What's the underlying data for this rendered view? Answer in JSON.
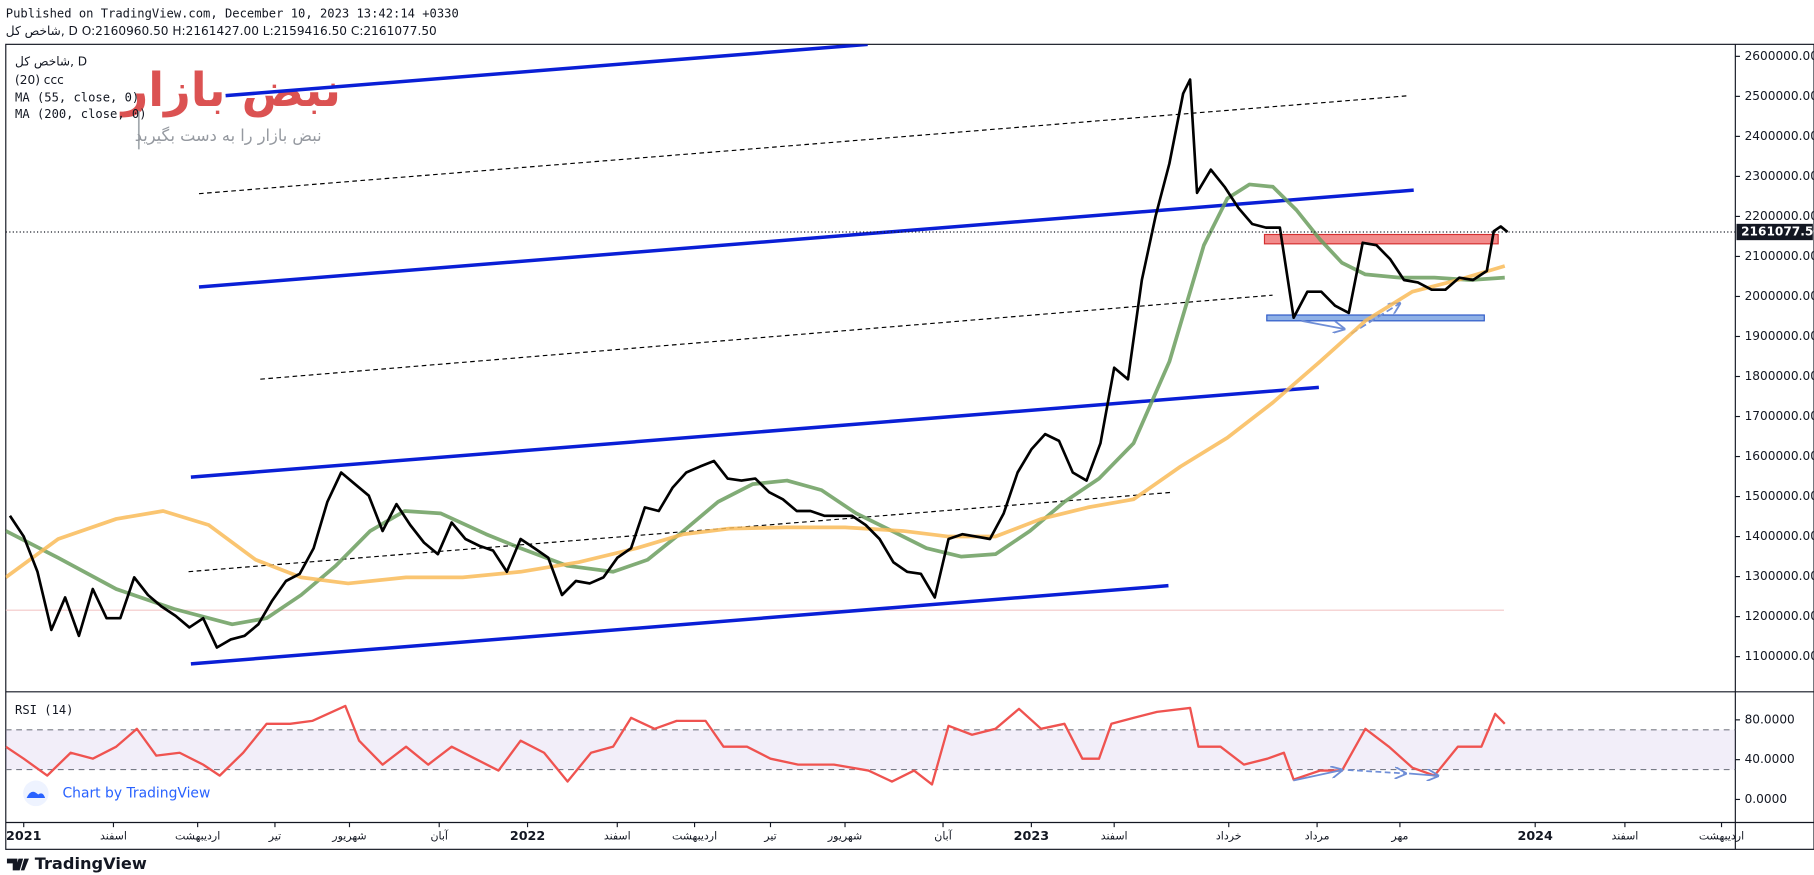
{
  "header": {
    "published": "Published on TradingView.com, December 10, 2023 13:42:14 +0330",
    "symbol_line": "شاخص کل, D O:2160960.50 H:2161427.00 L:2159416.50 C:2161077.50"
  },
  "watermark": {
    "brand": "نبض بازار",
    "tagline": "نبض بازار را به دست بگیرید"
  },
  "chart_data": [
    {
      "type": "line",
      "legend_extra": "(20) ccc",
      "xlim": [
        -13,
        1240
      ],
      "xticks": [
        {
          "value": 0,
          "label": "2021"
        },
        {
          "value": 65,
          "label": "اسفند"
        },
        {
          "value": 126,
          "label": "اردیبهشت"
        },
        {
          "value": 182,
          "label": "تیر"
        },
        {
          "value": 236,
          "label": "شهریور"
        },
        {
          "value": 301,
          "label": "آبان"
        },
        {
          "value": 365,
          "label": "2022"
        },
        {
          "value": 430,
          "label": "اسفند"
        },
        {
          "value": 486,
          "label": "اردیبهشت"
        },
        {
          "value": 541,
          "label": "تیر"
        },
        {
          "value": 595,
          "label": "شهریور"
        },
        {
          "value": 666,
          "label": "آبان"
        },
        {
          "value": 730,
          "label": "2023"
        },
        {
          "value": 790,
          "label": "اسفند"
        },
        {
          "value": 873,
          "label": "خرداد"
        },
        {
          "value": 937,
          "label": "مرداد"
        },
        {
          "value": 997,
          "label": "مهر"
        },
        {
          "value": 1095,
          "label": "2024"
        },
        {
          "value": 1160,
          "label": "اسفند"
        },
        {
          "value": 1230,
          "label": "اردیبهشت"
        }
      ],
      "ylim": [
        1015000,
        2630000
      ],
      "yticks": [
        {
          "value": 1100000,
          "label": "1100000.00"
        },
        {
          "value": 1200000,
          "label": "1200000.00"
        },
        {
          "value": 1300000,
          "label": "1300000.00"
        },
        {
          "value": 1400000,
          "label": "1400000.00"
        },
        {
          "value": 1500000,
          "label": "1500000.00"
        },
        {
          "value": 1600000,
          "label": "1600000.00"
        },
        {
          "value": 1700000,
          "label": "1700000.00"
        },
        {
          "value": 1800000,
          "label": "1800000.00"
        },
        {
          "value": 1900000,
          "label": "1900000.00"
        },
        {
          "value": 2000000,
          "label": "2000000.00"
        },
        {
          "value": 2100000,
          "label": "2100000.00"
        },
        {
          "value": 2200000,
          "label": "2200000.00"
        },
        {
          "value": 2300000,
          "label": "2300000.00"
        },
        {
          "value": 2400000,
          "label": "2400000.00"
        },
        {
          "value": 2500000,
          "label": "2500000.00"
        },
        {
          "value": 2600000,
          "label": "2600000.00"
        }
      ],
      "last_price": {
        "value": 2161077.5,
        "label": "2161077.50"
      },
      "series": [
        {
          "name": "شاخص کل, D",
          "color": "#000000",
          "x": [
            -10,
            0,
            10,
            20,
            30,
            40,
            50,
            60,
            70,
            80,
            90,
            100,
            110,
            120,
            130,
            140,
            150,
            160,
            170,
            180,
            190,
            200,
            210,
            220,
            230,
            240,
            250,
            260,
            270,
            280,
            290,
            300,
            310,
            320,
            330,
            340,
            350,
            360,
            370,
            380,
            390,
            400,
            410,
            420,
            430,
            440,
            450,
            460,
            470,
            480,
            490,
            500,
            510,
            520,
            530,
            540,
            550,
            560,
            570,
            580,
            590,
            600,
            610,
            620,
            630,
            640,
            650,
            660,
            670,
            680,
            690,
            700,
            710,
            720,
            730,
            740,
            750,
            760,
            770,
            780,
            790,
            800,
            810,
            820,
            830,
            840,
            845,
            850,
            860,
            870,
            880,
            890,
            900,
            910,
            920,
            930,
            940,
            950,
            960,
            970,
            980,
            990,
            1000,
            1010,
            1020,
            1030,
            1040,
            1050,
            1060,
            1065,
            1070,
            1075
          ],
          "values": [
            1452000,
            1400000,
            1312000,
            1167000,
            1248000,
            1152000,
            1269000,
            1196000,
            1196000,
            1298000,
            1254000,
            1225000,
            1202000,
            1173000,
            1196000,
            1123000,
            1143000,
            1152000,
            1181000,
            1240000,
            1289000,
            1307000,
            1371000,
            1487000,
            1560000,
            1531000,
            1502000,
            1414000,
            1481000,
            1429000,
            1385000,
            1356000,
            1435000,
            1394000,
            1377000,
            1365000,
            1312000,
            1394000,
            1371000,
            1347000,
            1254000,
            1289000,
            1283000,
            1298000,
            1347000,
            1371000,
            1473000,
            1464000,
            1522000,
            1560000,
            1575000,
            1589000,
            1545000,
            1540000,
            1545000,
            1511000,
            1493000,
            1464000,
            1464000,
            1452000,
            1452000,
            1452000,
            1429000,
            1394000,
            1336000,
            1312000,
            1307000,
            1248000,
            1394000,
            1406000,
            1400000,
            1394000,
            1458000,
            1560000,
            1618000,
            1656000,
            1639000,
            1560000,
            1540000,
            1633000,
            1822000,
            1793000,
            2041000,
            2201000,
            2332000,
            2507000,
            2542000,
            2259000,
            2317000,
            2274000,
            2221000,
            2181000,
            2172000,
            2172000,
            1947000,
            2012000,
            2012000,
            1977000,
            1959000,
            2134000,
            2128000,
            2093000,
            2041000,
            2035000,
            2017000,
            2017000,
            2047000,
            2041000,
            2064000,
            2163000,
            2175000,
            2161077.5
          ]
        },
        {
          "name": "MA (55, close, 0)",
          "color": "#6b9e5e",
          "x": [
            -13,
            25,
            67,
            109,
            151,
            176,
            201,
            226,
            251,
            276,
            302,
            335,
            360,
            394,
            427,
            452,
            478,
            503,
            528,
            553,
            578,
            603,
            629,
            654,
            679,
            704,
            729,
            754,
            779,
            804,
            830,
            855,
            872,
            888,
            905,
            922,
            939,
            955,
            972,
            997,
            1022,
            1048,
            1073
          ],
          "values": [
            1414000,
            1347000,
            1269000,
            1219000,
            1181000,
            1196000,
            1254000,
            1327000,
            1414000,
            1464000,
            1458000,
            1406000,
            1371000,
            1327000,
            1312000,
            1342000,
            1414000,
            1487000,
            1531000,
            1540000,
            1516000,
            1458000,
            1414000,
            1371000,
            1350000,
            1356000,
            1414000,
            1487000,
            1545000,
            1633000,
            1837000,
            2128000,
            2245000,
            2280000,
            2274000,
            2216000,
            2143000,
            2084000,
            2055000,
            2047000,
            2047000,
            2041000,
            2047000
          ]
        },
        {
          "name": "MA (200, close, 0)",
          "color": "#f9bb58",
          "x": [
            -13,
            25,
            67,
            101,
            134,
            168,
            201,
            235,
            277,
            318,
            360,
            402,
            444,
            478,
            511,
            553,
            595,
            637,
            670,
            704,
            737,
            771,
            804,
            838,
            872,
            905,
            939,
            972,
            1006,
            1039,
            1073
          ],
          "values": [
            1298000,
            1394000,
            1444000,
            1464000,
            1429000,
            1342000,
            1298000,
            1283000,
            1298000,
            1298000,
            1312000,
            1336000,
            1371000,
            1406000,
            1420000,
            1423000,
            1423000,
            1414000,
            1400000,
            1400000,
            1444000,
            1473000,
            1493000,
            1575000,
            1647000,
            1735000,
            1837000,
            1939000,
            2012000,
            2041000,
            2076000
          ]
        }
      ]
    },
    {
      "type": "line",
      "xlim": [
        -13,
        1240
      ],
      "ylim": [
        -22,
        107
      ],
      "yticks": [
        {
          "value": 0,
          "label": "0.0000"
        },
        {
          "value": 40,
          "label": "40.0000"
        },
        {
          "value": 80,
          "label": "80.0000"
        }
      ],
      "levels": [
        30,
        70
      ],
      "series": [
        {
          "name": "RSI (14)",
          "color": "#ef5350",
          "x": [
            -13,
            0,
            17,
            34,
            50,
            67,
            82,
            96,
            113,
            130,
            142,
            159,
            176,
            193,
            209,
            233,
            243,
            260,
            277,
            293,
            310,
            327,
            344,
            360,
            377,
            394,
            411,
            427,
            440,
            457,
            473,
            494,
            507,
            524,
            541,
            561,
            587,
            612,
            629,
            645,
            658,
            670,
            687,
            704,
            721,
            737,
            754,
            767,
            779,
            788,
            804,
            821,
            845,
            851,
            867,
            884,
            901,
            913,
            920,
            939,
            955,
            972,
            989,
            1006,
            1022,
            1039,
            1056,
            1066,
            1073
          ],
          "values": [
            53,
            41,
            24,
            47,
            41,
            53,
            71,
            44,
            47,
            35,
            24,
            47,
            76,
            76,
            79,
            94,
            59,
            35,
            53,
            35,
            53,
            41,
            29,
            59,
            47,
            18,
            47,
            53,
            82,
            71,
            79,
            79,
            53,
            53,
            41,
            35,
            35,
            29,
            18,
            29,
            15,
            74,
            65,
            71,
            91,
            71,
            76,
            41,
            41,
            76,
            82,
            88,
            92,
            53,
            53,
            35,
            41,
            47,
            20,
            29,
            29,
            71,
            53,
            32,
            24,
            53,
            53,
            86,
            76
          ]
        }
      ]
    }
  ],
  "footer": {
    "credit": "Chart by TradingView",
    "logo": "TradingView"
  }
}
